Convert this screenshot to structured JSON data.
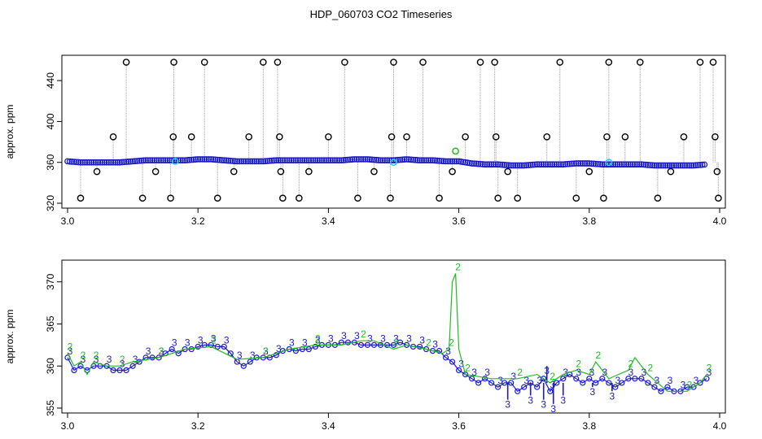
{
  "chart_title": "HDP_060703  CO2 Timeseries",
  "colors": {
    "black": "#000000",
    "blue": "#1a1acc",
    "green": "#22bb22",
    "cyan": "#22ccee",
    "gray": "#9a9a9a"
  },
  "chart_data": [
    {
      "type": "scatter",
      "title": "",
      "xlabel": "",
      "ylabel": "approx. ppm",
      "xlim": [
        3.0,
        4.0
      ],
      "ylim": [
        320,
        460
      ],
      "xticks": [
        "3.0",
        "3.2",
        "3.4",
        "3.6",
        "3.8",
        "4.0"
      ],
      "yticks": [
        "320",
        "360",
        "400",
        "440"
      ],
      "grid": false,
      "baseline_series": {
        "color": "blue",
        "points": [
          [
            3.0,
            361
          ],
          [
            3.02,
            360
          ],
          [
            3.04,
            360
          ],
          [
            3.06,
            360
          ],
          [
            3.08,
            360
          ],
          [
            3.1,
            361
          ],
          [
            3.12,
            362
          ],
          [
            3.14,
            362
          ],
          [
            3.16,
            362
          ],
          [
            3.18,
            362
          ],
          [
            3.2,
            363
          ],
          [
            3.22,
            363
          ],
          [
            3.24,
            362
          ],
          [
            3.26,
            361
          ],
          [
            3.28,
            361
          ],
          [
            3.3,
            361
          ],
          [
            3.32,
            362
          ],
          [
            3.34,
            362
          ],
          [
            3.36,
            362
          ],
          [
            3.38,
            362
          ],
          [
            3.4,
            362
          ],
          [
            3.42,
            362
          ],
          [
            3.44,
            363
          ],
          [
            3.46,
            363
          ],
          [
            3.48,
            362
          ],
          [
            3.5,
            362
          ],
          [
            3.52,
            363
          ],
          [
            3.54,
            362
          ],
          [
            3.56,
            362
          ],
          [
            3.58,
            361
          ],
          [
            3.6,
            361
          ],
          [
            3.62,
            359
          ],
          [
            3.64,
            358
          ],
          [
            3.66,
            358
          ],
          [
            3.68,
            357
          ],
          [
            3.7,
            357
          ],
          [
            3.72,
            358
          ],
          [
            3.74,
            358
          ],
          [
            3.76,
            358
          ],
          [
            3.78,
            359
          ],
          [
            3.8,
            359
          ],
          [
            3.82,
            358
          ],
          [
            3.84,
            358
          ],
          [
            3.86,
            358
          ],
          [
            3.88,
            358
          ],
          [
            3.9,
            357
          ],
          [
            3.92,
            357
          ],
          [
            3.94,
            357
          ],
          [
            3.96,
            357
          ],
          [
            3.98,
            358
          ]
        ]
      },
      "outlier_series": {
        "color": "black",
        "points": [
          [
            3.02,
            325
          ],
          [
            3.045,
            351
          ],
          [
            3.07,
            385
          ],
          [
            3.09,
            458
          ],
          [
            3.115,
            325
          ],
          [
            3.135,
            351
          ],
          [
            3.158,
            325
          ],
          [
            3.162,
            385
          ],
          [
            3.163,
            458
          ],
          [
            3.19,
            385
          ],
          [
            3.21,
            458
          ],
          [
            3.23,
            325
          ],
          [
            3.255,
            351
          ],
          [
            3.278,
            385
          ],
          [
            3.3,
            458
          ],
          [
            3.322,
            458
          ],
          [
            3.325,
            385
          ],
          [
            3.327,
            351
          ],
          [
            3.33,
            325
          ],
          [
            3.355,
            325
          ],
          [
            3.37,
            351
          ],
          [
            3.4,
            385
          ],
          [
            3.425,
            458
          ],
          [
            3.445,
            325
          ],
          [
            3.47,
            351
          ],
          [
            3.495,
            325
          ],
          [
            3.497,
            385
          ],
          [
            3.5,
            458
          ],
          [
            3.52,
            385
          ],
          [
            3.545,
            458
          ],
          [
            3.57,
            325
          ],
          [
            3.59,
            351
          ],
          [
            3.61,
            385
          ],
          [
            3.633,
            458
          ],
          [
            3.655,
            458
          ],
          [
            3.657,
            385
          ],
          [
            3.66,
            325
          ],
          [
            3.675,
            351
          ],
          [
            3.69,
            325
          ],
          [
            3.735,
            385
          ],
          [
            3.755,
            458
          ],
          [
            3.78,
            325
          ],
          [
            3.8,
            351
          ],
          [
            3.822,
            325
          ],
          [
            3.827,
            385
          ],
          [
            3.83,
            458
          ],
          [
            3.855,
            385
          ],
          [
            3.878,
            458
          ],
          [
            3.905,
            325
          ],
          [
            3.925,
            351
          ],
          [
            3.945,
            385
          ],
          [
            3.97,
            458
          ],
          [
            3.99,
            458
          ],
          [
            3.993,
            385
          ],
          [
            3.996,
            351
          ],
          [
            3.998,
            325
          ]
        ]
      },
      "highlight_points": [
        {
          "x": 3.165,
          "y": 361,
          "color": "cyan"
        },
        {
          "x": 3.5,
          "y": 360,
          "color": "cyan"
        },
        {
          "x": 3.595,
          "y": 371,
          "color": "green"
        },
        {
          "x": 3.83,
          "y": 360,
          "color": "cyan"
        }
      ]
    },
    {
      "type": "line",
      "title": "",
      "xlabel": "",
      "ylabel": "approx. ppm",
      "xlim": [
        3.0,
        4.0
      ],
      "ylim": [
        355,
        372
      ],
      "xticks": [
        "3.0",
        "3.2",
        "3.4",
        "3.6",
        "3.8",
        "4.0"
      ],
      "yticks": [
        "355",
        "360",
        "365",
        "370"
      ],
      "grid": false,
      "series": [
        {
          "color": "blue",
          "marker": "3",
          "points": [
            [
              3.0,
              361
            ],
            [
              3.01,
              359.5
            ],
            [
              3.02,
              360
            ],
            [
              3.03,
              359.5
            ],
            [
              3.04,
              360
            ],
            [
              3.05,
              360
            ],
            [
              3.06,
              360
            ],
            [
              3.07,
              359.5
            ],
            [
              3.08,
              359.5
            ],
            [
              3.09,
              359.5
            ],
            [
              3.1,
              360
            ],
            [
              3.11,
              360.5
            ],
            [
              3.12,
              361
            ],
            [
              3.13,
              361
            ],
            [
              3.14,
              361
            ],
            [
              3.15,
              361.5
            ],
            [
              3.16,
              362
            ],
            [
              3.17,
              361.5
            ],
            [
              3.18,
              362
            ],
            [
              3.19,
              362
            ],
            [
              3.2,
              362.3
            ],
            [
              3.21,
              362.5
            ],
            [
              3.22,
              362.5
            ],
            [
              3.23,
              362.3
            ],
            [
              3.24,
              362.3
            ],
            [
              3.25,
              361.5
            ],
            [
              3.26,
              360.5
            ],
            [
              3.27,
              360
            ],
            [
              3.28,
              360.5
            ],
            [
              3.29,
              361
            ],
            [
              3.3,
              361
            ],
            [
              3.31,
              361
            ],
            [
              3.32,
              361.3
            ],
            [
              3.33,
              361.8
            ],
            [
              3.34,
              362
            ],
            [
              3.35,
              361.8
            ],
            [
              3.36,
              362
            ],
            [
              3.37,
              362
            ],
            [
              3.38,
              362.3
            ],
            [
              3.39,
              362.5
            ],
            [
              3.4,
              362.5
            ],
            [
              3.41,
              362.5
            ],
            [
              3.42,
              362.8
            ],
            [
              3.43,
              362.8
            ],
            [
              3.44,
              362.8
            ],
            [
              3.45,
              362.5
            ],
            [
              3.46,
              362.5
            ],
            [
              3.47,
              362.5
            ],
            [
              3.48,
              362.5
            ],
            [
              3.49,
              362.5
            ],
            [
              3.5,
              362.5
            ],
            [
              3.51,
              362.8
            ],
            [
              3.52,
              362.5
            ],
            [
              3.53,
              362.3
            ],
            [
              3.54,
              362.3
            ],
            [
              3.55,
              362
            ],
            [
              3.56,
              361.8
            ],
            [
              3.57,
              361.8
            ],
            [
              3.58,
              361
            ],
            [
              3.59,
              360.5
            ],
            [
              3.6,
              359.5
            ],
            [
              3.61,
              359
            ],
            [
              3.62,
              358.5
            ],
            [
              3.63,
              358
            ],
            [
              3.64,
              358.5
            ],
            [
              3.65,
              358
            ],
            [
              3.66,
              357.5
            ],
            [
              3.67,
              358
            ],
            [
              3.68,
              358
            ],
            [
              3.69,
              357
            ],
            [
              3.7,
              357.5
            ],
            [
              3.71,
              358
            ],
            [
              3.72,
              357.5
            ],
            [
              3.73,
              358.5
            ],
            [
              3.74,
              357
            ],
            [
              3.75,
              358
            ],
            [
              3.76,
              358.5
            ],
            [
              3.77,
              359
            ],
            [
              3.78,
              358.5
            ],
            [
              3.79,
              358
            ],
            [
              3.8,
              358.5
            ],
            [
              3.81,
              358
            ],
            [
              3.82,
              358.5
            ],
            [
              3.83,
              358
            ],
            [
              3.84,
              357.5
            ],
            [
              3.85,
              358
            ],
            [
              3.86,
              358.5
            ],
            [
              3.87,
              358.5
            ],
            [
              3.88,
              358.5
            ],
            [
              3.89,
              358
            ],
            [
              3.9,
              357.5
            ],
            [
              3.91,
              357
            ],
            [
              3.92,
              357.5
            ],
            [
              3.93,
              357
            ],
            [
              3.94,
              357
            ],
            [
              3.95,
              357.5
            ],
            [
              3.96,
              357.5
            ],
            [
              3.97,
              358
            ],
            [
              3.98,
              358.5
            ]
          ],
          "spikes": [
            [
              3.675,
              356
            ],
            [
              3.71,
              356.5
            ],
            [
              3.73,
              356
            ],
            [
              3.735,
              360
            ],
            [
              3.745,
              355.5
            ],
            [
              3.76,
              356.5
            ],
            [
              3.805,
              357.5
            ],
            [
              3.835,
              357
            ]
          ]
        },
        {
          "color": "green",
          "marker": "2",
          "points": [
            [
              3.0,
              361.5
            ],
            [
              3.01,
              360
            ],
            [
              3.02,
              360.5
            ],
            [
              3.03,
              359
            ],
            [
              3.04,
              360.5
            ],
            [
              3.06,
              360
            ],
            [
              3.08,
              360
            ],
            [
              3.1,
              360.5
            ],
            [
              3.14,
              361
            ],
            [
              3.18,
              362
            ],
            [
              3.22,
              362.3
            ],
            [
              3.26,
              360.8
            ],
            [
              3.3,
              361
            ],
            [
              3.34,
              362
            ],
            [
              3.38,
              362.5
            ],
            [
              3.42,
              362.5
            ],
            [
              3.45,
              363
            ],
            [
              3.47,
              363
            ],
            [
              3.5,
              362
            ],
            [
              3.52,
              362.5
            ],
            [
              3.55,
              362
            ],
            [
              3.575,
              361.5
            ],
            [
              3.585,
              362
            ],
            [
              3.59,
              370
            ],
            [
              3.595,
              371
            ],
            [
              3.6,
              362
            ],
            [
              3.61,
              359
            ],
            [
              3.65,
              358.5
            ],
            [
              3.69,
              358.5
            ],
            [
              3.72,
              359
            ],
            [
              3.74,
              358
            ],
            [
              3.76,
              359
            ],
            [
              3.78,
              359.5
            ],
            [
              3.8,
              359
            ],
            [
              3.81,
              360.5
            ],
            [
              3.83,
              358.5
            ],
            [
              3.86,
              359.5
            ],
            [
              3.87,
              361
            ],
            [
              3.89,
              359
            ],
            [
              3.92,
              357
            ],
            [
              3.95,
              357
            ],
            [
              3.97,
              358
            ],
            [
              3.98,
              359
            ]
          ]
        }
      ]
    }
  ]
}
